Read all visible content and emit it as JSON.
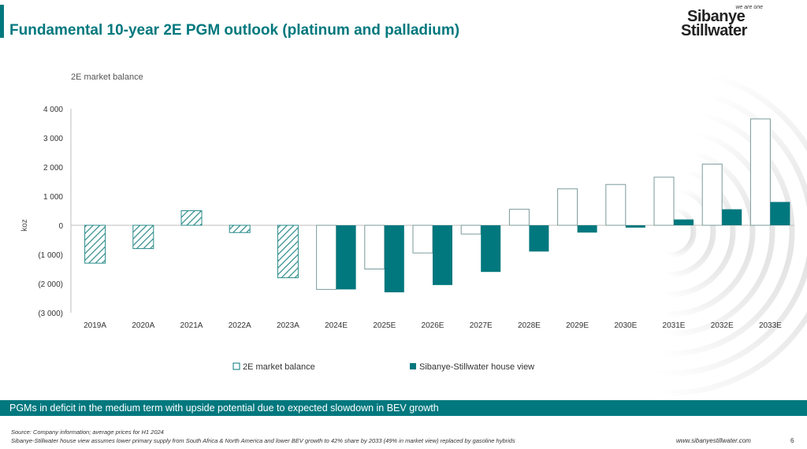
{
  "slide": {
    "title": "Fundamental 10-year 2E PGM outlook (platinum and palladium)",
    "banner": "PGMs in deficit in the medium term with upside potential due to expected slowdown in BEV growth",
    "source": "Source: Company information; average prices for H1 2024",
    "note": "Sibanye-Stillwater house view assumes lower primary supply from South Africa & North America and lower BEV growth to 42% share by 2033 (49% in market view) replaced by gasoline hybrids",
    "url": "www.sibanyestillwater.com",
    "page": "6"
  },
  "logo": {
    "tagline": "we are one",
    "line1": "Sibanye",
    "line2": "Stillwater"
  },
  "chart_data": {
    "type": "bar",
    "title": "2E market balance",
    "ylabel": "koz",
    "xlabel": "",
    "ylim": [
      -3000,
      4000
    ],
    "yticks": [
      4000,
      3000,
      2000,
      1000,
      0,
      -1000,
      -2000,
      -3000
    ],
    "ytick_labels": [
      "4 000",
      "3 000",
      "2 000",
      "1 000",
      "0",
      "(1 000)",
      "(2 000)",
      "(3 000)"
    ],
    "categories": [
      "2019A",
      "2020A",
      "2021A",
      "2022A",
      "2023A",
      "2024E",
      "2025E",
      "2026E",
      "2027E",
      "2028E",
      "2029E",
      "2030E",
      "2031E",
      "2032E",
      "2033E"
    ],
    "historical": [
      -1300,
      -800,
      500,
      -250,
      -1800,
      null,
      null,
      null,
      null,
      null,
      null,
      null,
      null,
      null,
      null
    ],
    "series": [
      {
        "name": "2E market balance",
        "values": [
          null,
          null,
          null,
          null,
          null,
          -2200,
          -1500,
          -950,
          -300,
          550,
          1250,
          1400,
          1650,
          2100,
          3650
        ]
      },
      {
        "name": "Sibanye-Stillwater house view",
        "values": [
          null,
          null,
          null,
          null,
          null,
          -2200,
          -2300,
          -2050,
          -1600,
          -900,
          -250,
          -80,
          200,
          550,
          800
        ]
      }
    ],
    "colors": {
      "market": "#ffffff",
      "house": "#00787e",
      "hatch": "#2a8a8a",
      "axis": "#bfbfbf"
    },
    "legend_position": "bottom"
  }
}
